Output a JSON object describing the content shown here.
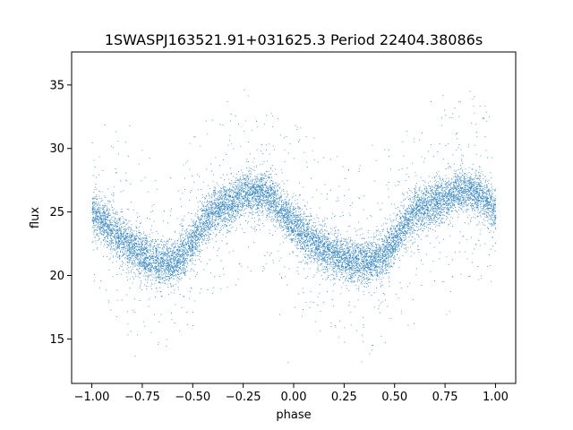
{
  "chart_data": {
    "type": "scatter",
    "title": "1SWASPJ163521.91+031625.3 Period 22404.38086s",
    "xlabel": "phase",
    "ylabel": "flux",
    "xlim": [
      -1.1,
      1.1
    ],
    "ylim": [
      11.5,
      37.6
    ],
    "x_ticks": [
      -1.0,
      -0.75,
      -0.5,
      -0.25,
      0.0,
      0.25,
      0.5,
      0.75,
      1.0
    ],
    "x_tick_labels": [
      "−1.00",
      "−0.75",
      "−0.50",
      "−0.25",
      "0.00",
      "0.25",
      "0.50",
      "0.75",
      "1.00"
    ],
    "y_ticks": [
      15,
      20,
      25,
      30,
      35
    ],
    "y_tick_labels": [
      "15",
      "20",
      "25",
      "30",
      "35"
    ],
    "grid": false,
    "marker_color": "#1f77b4",
    "series": [
      {
        "x": [
          -1.0,
          -0.95,
          -0.9,
          -0.85,
          -0.8,
          -0.75,
          -0.7,
          -0.65,
          -0.6,
          -0.55,
          -0.5,
          -0.45,
          -0.4,
          -0.35,
          -0.3,
          -0.25,
          -0.2,
          -0.15,
          -0.1,
          -0.05,
          0.0,
          0.05,
          0.1,
          0.15,
          0.2,
          0.25,
          0.3,
          0.35,
          0.4,
          0.45,
          0.5,
          0.55,
          0.6,
          0.65,
          0.7,
          0.75,
          0.8,
          0.85,
          0.9,
          0.95,
          1.0
        ],
        "y": [
          25.0,
          24.3,
          23.5,
          22.8,
          22.2,
          21.6,
          21.2,
          21.0,
          21.1,
          21.5,
          22.6,
          24.0,
          25.0,
          25.4,
          25.8,
          26.4,
          26.6,
          26.5,
          25.9,
          24.9,
          24.0,
          23.3,
          22.6,
          22.0,
          21.6,
          21.3,
          21.1,
          21.0,
          21.2,
          21.7,
          22.8,
          24.1,
          25.0,
          25.4,
          25.7,
          26.2,
          26.5,
          26.6,
          26.5,
          26.0,
          25.0
        ],
        "point_count": 12000
      }
    ]
  }
}
